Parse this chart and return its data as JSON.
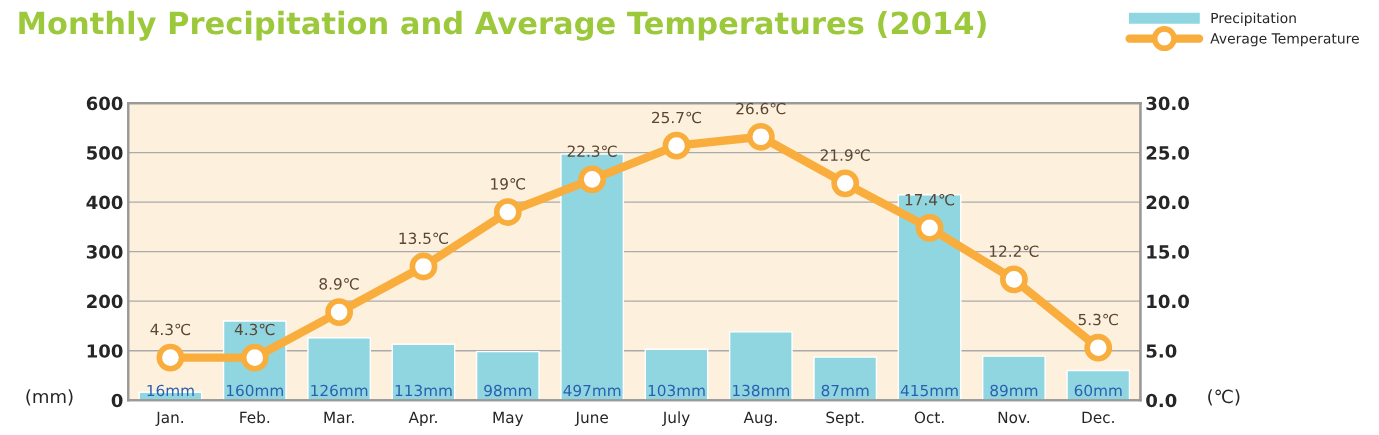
{
  "chart_data": {
    "type": "bar",
    "title": "Monthly Precipitation and Average Temperatures (2014)",
    "categories": [
      "Jan.",
      "Feb.",
      "Mar.",
      "Apr.",
      "May",
      "June",
      "July",
      "Aug.",
      "Sept.",
      "Oct.",
      "Nov.",
      "Dec."
    ],
    "series": [
      {
        "name": "Precipitation",
        "color": "#8fd6e1",
        "values": [
          16,
          160,
          126,
          113,
          98,
          497,
          103,
          138,
          87,
          415,
          89,
          60
        ],
        "value_labels": [
          "16mm",
          "160mm",
          "126mm",
          "113mm",
          "98mm",
          "497mm",
          "103mm",
          "138mm",
          "87mm",
          "415mm",
          "89mm",
          "60mm"
        ]
      },
      {
        "name": "Average Temperature",
        "type": "line",
        "axis": "y2",
        "color": "#f9ad3c",
        "marker": "circle",
        "values": [
          4.3,
          4.3,
          8.9,
          13.5,
          19,
          22.3,
          25.7,
          26.6,
          21.9,
          17.4,
          12.2,
          5.3
        ],
        "value_labels": [
          "4.3℃",
          "4.3℃",
          "8.9℃",
          "13.5℃",
          "19℃",
          "22.3℃",
          "25.7℃",
          "26.6℃",
          "21.9℃",
          "17.4℃",
          "12.2℃",
          "5.3℃"
        ]
      }
    ],
    "ylabel": "(mm)",
    "y2label": "(℃)",
    "ylim": [
      0,
      600
    ],
    "yticks": [
      0,
      100,
      200,
      300,
      400,
      500,
      600
    ],
    "y2lim": [
      0,
      30
    ],
    "y2ticks": [
      {
        "value": 0,
        "label": "0.0"
      },
      {
        "value": 5,
        "label": "5.0"
      },
      {
        "value": 10,
        "label": "10.0"
      },
      {
        "value": 15,
        "label": "15.0"
      },
      {
        "value": 20,
        "label": "20.0"
      },
      {
        "value": 25,
        "label": "25.0"
      },
      {
        "value": 30,
        "label": "30.0"
      }
    ],
    "grid": "y",
    "legend": "top right"
  }
}
